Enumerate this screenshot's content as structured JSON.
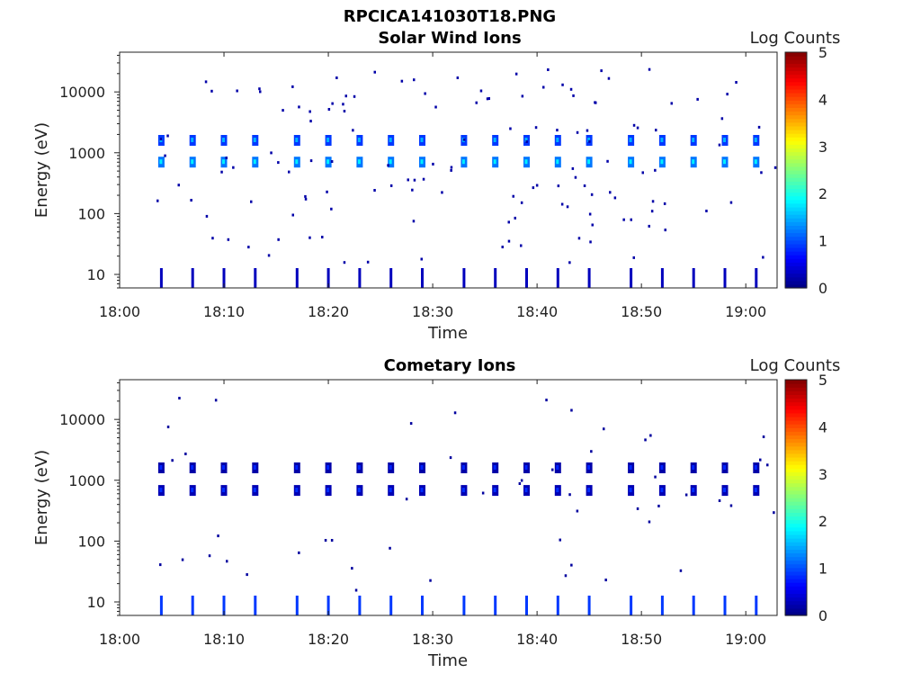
{
  "figure_title": "RPCICA141030T18.PNG",
  "colors": {
    "colormap": "jet",
    "axis": "#222222",
    "background": "#ffffff"
  },
  "chart_data": [
    {
      "type": "heatmap",
      "title": "Solar Wind Ions",
      "xlabel": "Time",
      "ylabel": "Energy (eV)",
      "x_scale": "time",
      "y_scale": "log",
      "xlim": [
        "18:00",
        "19:03"
      ],
      "ylim": [
        6,
        45000
      ],
      "x_ticks": [
        "18:00",
        "18:10",
        "18:20",
        "18:30",
        "18:40",
        "18:50",
        "19:00"
      ],
      "y_ticks": [
        "10",
        "100",
        "1000",
        "10000"
      ],
      "colorbar": {
        "label": "Log Counts",
        "range": [
          0,
          5
        ],
        "ticks": [
          "0",
          "1",
          "2",
          "3",
          "4",
          "5"
        ]
      },
      "burst_times": [
        "18:04",
        "18:07",
        "18:10",
        "18:13",
        "18:17",
        "18:20",
        "18:23",
        "18:26",
        "18:29",
        "18:33",
        "18:36",
        "18:39",
        "18:42",
        "18:45",
        "18:49",
        "18:52",
        "18:55",
        "18:58",
        "19:01"
      ],
      "bands": [
        {
          "energy_ev": 1600,
          "log_counts": 0.9
        },
        {
          "energy_ev": 700,
          "log_counts": 1.2
        },
        {
          "energy_ev": 8,
          "log_counts": 0.3
        }
      ],
      "scatter_log_counts": 0.2
    },
    {
      "type": "heatmap",
      "title": "Cometary Ions",
      "xlabel": "Time",
      "ylabel": "Energy (eV)",
      "x_scale": "time",
      "y_scale": "log",
      "xlim": [
        "18:00",
        "19:03"
      ],
      "ylim": [
        6,
        45000
      ],
      "x_ticks": [
        "18:00",
        "18:10",
        "18:20",
        "18:30",
        "18:40",
        "18:50",
        "19:00"
      ],
      "y_ticks": [
        "10",
        "100",
        "1000",
        "10000"
      ],
      "colorbar": {
        "label": "Log Counts",
        "range": [
          0,
          5
        ],
        "ticks": [
          "0",
          "1",
          "2",
          "3",
          "4",
          "5"
        ]
      },
      "burst_times": [
        "18:04",
        "18:07",
        "18:10",
        "18:13",
        "18:17",
        "18:20",
        "18:23",
        "18:26",
        "18:29",
        "18:33",
        "18:36",
        "18:39",
        "18:42",
        "18:45",
        "18:49",
        "18:52",
        "18:55",
        "18:58",
        "19:01"
      ],
      "bands": [
        {
          "energy_ev": 1600,
          "log_counts": 0.2
        },
        {
          "energy_ev": 680,
          "log_counts": 0.25
        },
        {
          "energy_ev": 12,
          "log_counts": 0.9
        }
      ],
      "scatter_log_counts": 0.15
    }
  ]
}
